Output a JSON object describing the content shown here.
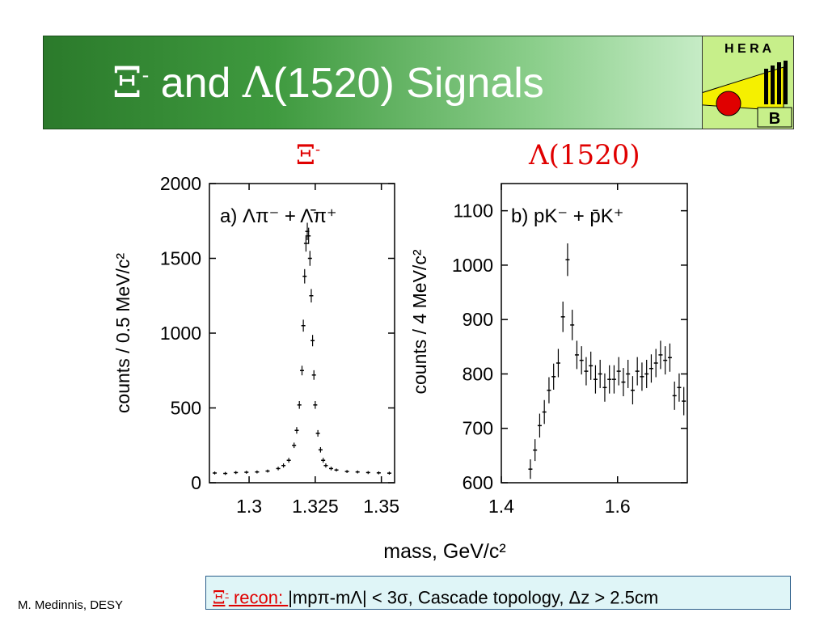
{
  "slide": {
    "title_sym1": "Ξ",
    "title_sup": "-",
    "title_mid": " and ",
    "title_sym2": "Λ",
    "title_end": "(1520) Signals",
    "logo_text_top": "H E R A",
    "logo_text_bottom": "B",
    "label_xi": "Ξ",
    "label_xi_sup": "-",
    "label_lambda": "Λ(1520)",
    "author": "M. Medinnis, DESY",
    "recon_prefix": "Ξ",
    "recon_prefix_sup": "-",
    "recon_label": " recon: ",
    "recon_text": "|mpπ-mΛ| < 3σ, Cascade topology, Δz > 2.5cm",
    "colors": {
      "banner_dark": "#2b7a2b",
      "banner_light": "#c6ecc6",
      "accent_red": "#e00000",
      "recon_bg": "#dff5f7"
    }
  },
  "chart_data": [
    {
      "type": "scatter",
      "panel_label": "a)  Λπ⁻ + Λ̄π⁺",
      "ylabel": "counts / 0.5 MeV/c²",
      "xlabel": "mass, GeV/c²",
      "xlim": [
        1.285,
        1.355
      ],
      "ylim": [
        0,
        2000
      ],
      "xticks": [
        1.3,
        1.325,
        1.35
      ],
      "xtick_labels": [
        "1.3",
        "1.325",
        "1.35"
      ],
      "yticks": [
        0,
        500,
        1000,
        1500,
        2000
      ],
      "ytick_labels": [
        "0",
        "500",
        "1000",
        "1500",
        "2000"
      ],
      "x": [
        1.287,
        1.291,
        1.295,
        1.299,
        1.303,
        1.307,
        1.311,
        1.313,
        1.315,
        1.317,
        1.318,
        1.319,
        1.32,
        1.3205,
        1.321,
        1.3215,
        1.322,
        1.3225,
        1.323,
        1.3235,
        1.324,
        1.3245,
        1.325,
        1.326,
        1.327,
        1.328,
        1.329,
        1.331,
        1.333,
        1.337,
        1.341,
        1.345,
        1.349,
        1.353
      ],
      "y": [
        65,
        62,
        68,
        70,
        72,
        78,
        95,
        115,
        150,
        250,
        350,
        520,
        750,
        1050,
        1380,
        1600,
        1680,
        1650,
        1500,
        1250,
        950,
        720,
        520,
        330,
        220,
        150,
        115,
        95,
        85,
        75,
        72,
        68,
        66,
        64
      ],
      "yerr": [
        10,
        10,
        10,
        10,
        10,
        10,
        12,
        14,
        16,
        18,
        22,
        26,
        32,
        40,
        48,
        55,
        58,
        55,
        50,
        45,
        38,
        32,
        26,
        22,
        18,
        16,
        14,
        12,
        10,
        10,
        10,
        10,
        10,
        10
      ]
    },
    {
      "type": "scatter",
      "panel_label": "b)  pK⁻ + p̄K⁺",
      "ylabel": "counts / 4 MeV/c²",
      "xlabel": "mass, GeV/c²",
      "xlim": [
        1.4,
        1.72
      ],
      "ylim": [
        600,
        1150
      ],
      "xticks": [
        1.4,
        1.6
      ],
      "xtick_labels": [
        "1.4",
        "1.6"
      ],
      "yticks": [
        600,
        700,
        800,
        900,
        1000,
        1100
      ],
      "ytick_labels": [
        "600",
        "700",
        "800",
        "900",
        "1000",
        "1100"
      ],
      "x": [
        1.45,
        1.458,
        1.466,
        1.474,
        1.482,
        1.49,
        1.498,
        1.506,
        1.514,
        1.522,
        1.53,
        1.538,
        1.546,
        1.554,
        1.562,
        1.57,
        1.578,
        1.586,
        1.594,
        1.602,
        1.61,
        1.618,
        1.626,
        1.634,
        1.642,
        1.65,
        1.658,
        1.666,
        1.674,
        1.682,
        1.69,
        1.698,
        1.706,
        1.714
      ],
      "y": [
        625,
        660,
        705,
        730,
        770,
        795,
        820,
        905,
        1010,
        890,
        835,
        825,
        805,
        815,
        790,
        800,
        775,
        790,
        790,
        805,
        785,
        800,
        770,
        805,
        795,
        800,
        810,
        820,
        835,
        825,
        830,
        760,
        775,
        750
      ],
      "yerr": [
        18,
        20,
        22,
        22,
        24,
        24,
        26,
        28,
        30,
        28,
        26,
        26,
        26,
        26,
        26,
        26,
        26,
        26,
        26,
        26,
        26,
        26,
        26,
        26,
        26,
        26,
        26,
        26,
        26,
        26,
        26,
        26,
        26,
        26
      ]
    }
  ]
}
